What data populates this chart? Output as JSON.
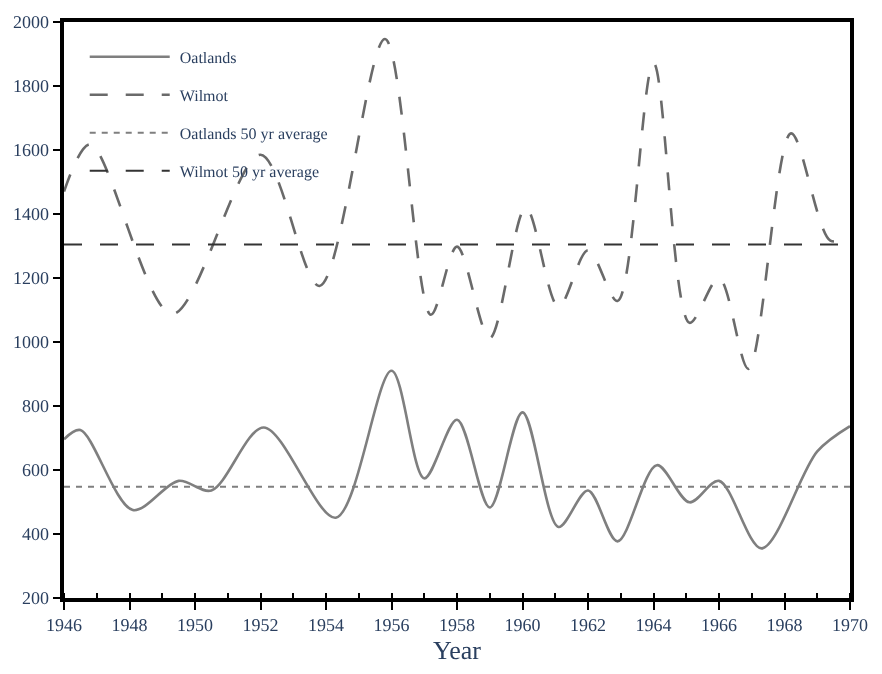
{
  "chart_data": {
    "type": "line",
    "xlabel": "Year",
    "x": [
      1946,
      1946.5,
      1948.1,
      1949.5,
      1950.5,
      1952.1,
      1954.3,
      1956,
      1957,
      1958,
      1959,
      1960,
      1961.1,
      1962,
      1962.9,
      1964.1,
      1965.1,
      1966,
      1967.3,
      1969,
      1970
    ],
    "series": [
      {
        "name": "Oatlands",
        "color": "#7f7f7f",
        "line_style": "solid",
        "values": [
          696,
          725,
          475,
          566,
          536,
          733,
          451,
          910,
          574,
          757,
          483,
          780,
          422,
          536,
          377,
          615,
          499,
          566,
          355,
          658,
          737
        ]
      },
      {
        "name": "Wilmot",
        "color": "#6a6a6a",
        "line_style": "dashed",
        "x": [
          1946,
          1946.8,
          1949.3,
          1952,
          1953.8,
          1955.8,
          1957.2,
          1958,
          1959,
          1960.1,
          1961.1,
          1962,
          1962.9,
          1964,
          1965.1,
          1966,
          1966.9,
          1968.2,
          1969.4,
          1970
        ],
        "values": [
          1470,
          1618,
          1087,
          1585,
          1175,
          1947,
          1085,
          1298,
          1012,
          1420,
          1110,
          1287,
          1128,
          1872,
          1060,
          1200,
          916,
          1652,
          1317,
          1330
        ]
      }
    ],
    "ref_lines": [
      {
        "axis": "y",
        "value": 548,
        "label": "Oatlands 50 yr average",
        "color": "#7f7f7f",
        "line_style": "dotted"
      },
      {
        "axis": "y",
        "value": 1305,
        "label": "Wilmot 50 yr average",
        "color": "#333333",
        "line_style": "dashed"
      }
    ],
    "xlim": [
      1946,
      1970
    ],
    "xticks": [
      1946,
      1948,
      1950,
      1952,
      1954,
      1956,
      1958,
      1960,
      1962,
      1964,
      1966,
      1968,
      1970
    ],
    "ylim": [
      200,
      2000
    ],
    "yticks": [
      200,
      400,
      600,
      800,
      1000,
      1200,
      1400,
      1600,
      1800,
      2000
    ],
    "legend": "top left",
    "marker": "none"
  }
}
